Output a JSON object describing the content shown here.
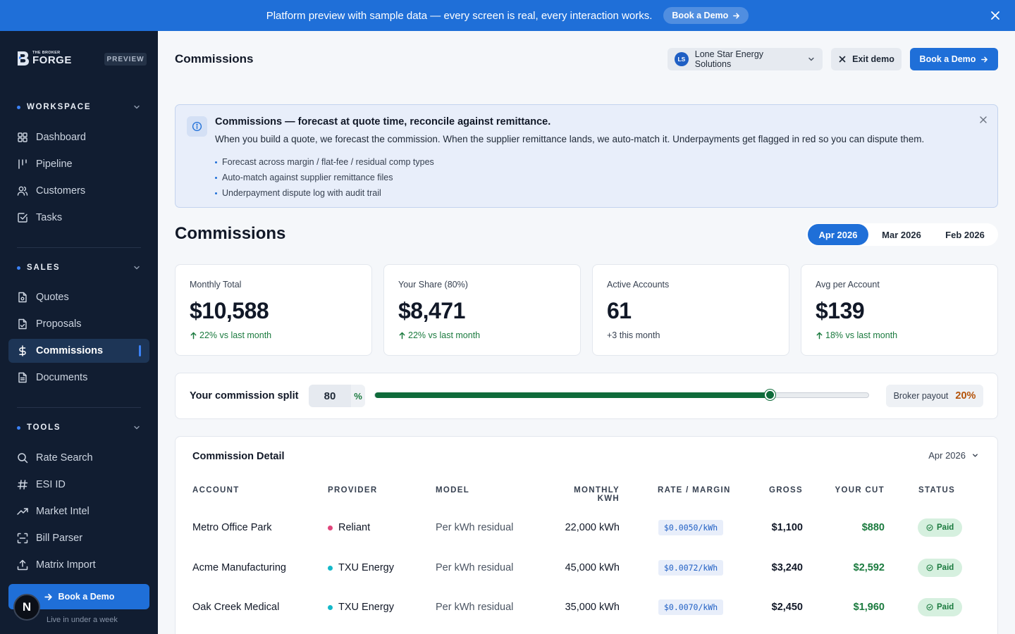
{
  "banner": {
    "text": "Platform preview with sample data — every screen is real, every interaction works.",
    "button_label": "Book a Demo"
  },
  "sidebar": {
    "brand_small": "THE BROKER",
    "brand_big": "FORGE",
    "preview_badge": "PREVIEW",
    "sections": [
      {
        "title": "WORKSPACE",
        "items": [
          "Dashboard",
          "Pipeline",
          "Customers",
          "Tasks"
        ]
      },
      {
        "title": "SALES",
        "items": [
          "Quotes",
          "Proposals",
          "Commissions",
          "Documents"
        ]
      },
      {
        "title": "TOOLS",
        "items": [
          "Rate Search",
          "ESI ID",
          "Market Intel",
          "Bill Parser",
          "Matrix Import"
        ]
      }
    ],
    "active_item": "Commissions",
    "demo_button": "Book a Demo",
    "demo_sub": "Live in under a week",
    "avatar_letter": "N"
  },
  "header": {
    "title": "Commissions",
    "company": {
      "initials": "LS",
      "name": "Lone Star Energy Solutions"
    },
    "exit_label": "Exit demo",
    "demo_label": "Book a Demo"
  },
  "info": {
    "title": "Commissions — forecast at quote time, reconcile against remittance.",
    "description": "When you build a quote, we forecast the commission. When the supplier remittance lands, we auto-match it. Underpayments get flagged in red so you can dispute them.",
    "bullets": [
      "Forecast across margin / flat-fee / residual comp types",
      "Auto-match against supplier remittance files",
      "Underpayment dispute log with audit trail"
    ]
  },
  "commissions": {
    "title": "Commissions",
    "months": [
      "Apr 2026",
      "Mar 2026",
      "Feb 2026"
    ],
    "active_month": "Apr 2026"
  },
  "kpis": [
    {
      "label": "Monthly Total",
      "value": "$10,588",
      "delta": "22% vs last month",
      "trend": "up"
    },
    {
      "label": "Your Share (80%)",
      "value": "$8,471",
      "delta": "22% vs last month",
      "trend": "up"
    },
    {
      "label": "Active Accounts",
      "value": "61",
      "delta": "+3 this month",
      "trend": "neutral"
    },
    {
      "label": "Avg per Account",
      "value": "$139",
      "delta": "18% vs last month",
      "trend": "up"
    }
  ],
  "split": {
    "label": "Your commission split",
    "value": "80",
    "unit": "%",
    "slider_fraction": 0.8,
    "payout_label": "Broker payout",
    "payout_value": "20%"
  },
  "table": {
    "title": "Commission Detail",
    "month": "Apr 2026",
    "columns": [
      "ACCOUNT",
      "PROVIDER",
      "MODEL",
      "MONTHLY KWH",
      "RATE / MARGIN",
      "GROSS",
      "YOUR CUT",
      "STATUS"
    ],
    "rows": [
      {
        "account": "Metro Office Park",
        "provider": "Reliant",
        "provider_color": "#e0457b",
        "model": "Per kWh residual",
        "kwh": "22,000 kWh",
        "rate": "$0.0050/kWh",
        "gross": "$1,100",
        "cut": "$880",
        "status": "Paid"
      },
      {
        "account": "Acme Manufacturing",
        "provider": "TXU Energy",
        "provider_color": "#14b8c9",
        "model": "Per kWh residual",
        "kwh": "45,000 kWh",
        "rate": "$0.0072/kWh",
        "gross": "$3,240",
        "cut": "$2,592",
        "status": "Paid"
      },
      {
        "account": "Oak Creek Medical",
        "provider": "TXU Energy",
        "provider_color": "#14b8c9",
        "model": "Per kWh residual",
        "kwh": "35,000 kWh",
        "rate": "$0.0070/kWh",
        "gross": "$2,450",
        "cut": "$1,960",
        "status": "Paid"
      }
    ]
  },
  "colors": {
    "accent": "#1f6fd8",
    "sidebar_bg": "#111d31",
    "positive": "#1a7a3e",
    "payout": "#b45309"
  }
}
